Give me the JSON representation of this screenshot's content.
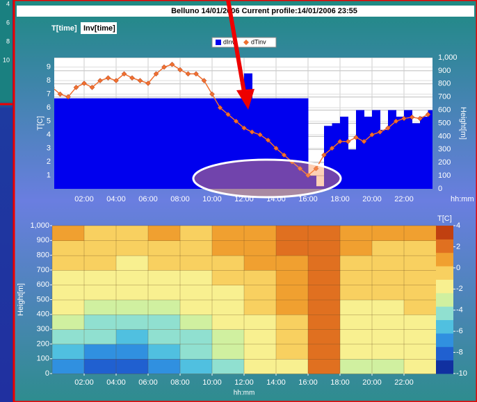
{
  "ui": {
    "title": "Belluno 14/01/2006 Current profile:14/01/2006 23:55",
    "tabs": [
      "T[time]",
      "Inv[time]"
    ],
    "side_labels": [
      "4",
      "6",
      "8",
      "10"
    ]
  },
  "chart_data": [
    {
      "type": "combo",
      "xlim": [
        0,
        24
      ],
      "xticks": [
        {
          "value": 2,
          "label": "02:00"
        },
        {
          "value": 4,
          "label": "04:00"
        },
        {
          "value": 6,
          "label": "06:00"
        },
        {
          "value": 8,
          "label": "08:00"
        },
        {
          "value": 10,
          "label": "10:00"
        },
        {
          "value": 12,
          "label": "12:00"
        },
        {
          "value": 14,
          "label": "14:00"
        },
        {
          "value": 16,
          "label": "16:00"
        },
        {
          "value": 18,
          "label": "18:00"
        },
        {
          "value": 20,
          "label": "20:00"
        },
        {
          "value": 22,
          "label": "22:00"
        }
      ],
      "xlabel": "hh:mm",
      "ylabel": "T[C]",
      "y2label": "Height[m]",
      "ylim": [
        0,
        9.7
      ],
      "yticks": [
        1,
        2,
        3,
        4,
        5,
        6,
        7,
        8,
        9
      ],
      "y2lim": [
        0,
        1000
      ],
      "y2ticks": [
        0,
        100,
        200,
        300,
        400,
        500,
        600,
        700,
        800,
        900,
        {
          "value": 1000,
          "label": "1,000"
        }
      ],
      "grid": true,
      "x": [
        0,
        0.5,
        1,
        1.5,
        2,
        2.5,
        3,
        3.5,
        4,
        4.5,
        5,
        5.5,
        6,
        6.5,
        7,
        7.5,
        8,
        8.5,
        9,
        9.5,
        10,
        10.5,
        11,
        11.5,
        12,
        12.5,
        13,
        13.5,
        14,
        14.5,
        15,
        15.5,
        16,
        16.5,
        17,
        17.5,
        18,
        18.5,
        19,
        19.5,
        20,
        20.5,
        21,
        21.5,
        22,
        22.5,
        23,
        23.5
      ],
      "series": [
        {
          "name": "dInv",
          "type": "bar",
          "axis": "y2",
          "color": "#0000ee",
          "values": [
            690,
            690,
            690,
            690,
            690,
            690,
            690,
            690,
            690,
            690,
            690,
            690,
            690,
            690,
            690,
            690,
            690,
            690,
            690,
            690,
            690,
            690,
            690,
            690,
            880,
            690,
            690,
            690,
            690,
            690,
            690,
            690,
            100,
            20,
            480,
            500,
            550,
            300,
            600,
            550,
            600,
            450,
            600,
            550,
            600,
            500,
            550,
            600
          ]
        },
        {
          "name": "dTinv",
          "type": "line",
          "color": "#f07030",
          "values": [
            7.5,
            7,
            6.8,
            7.5,
            7.8,
            7.5,
            8,
            8.2,
            8,
            8.5,
            8.2,
            8,
            7.8,
            8.5,
            9,
            9.2,
            8.8,
            8.5,
            8.5,
            8,
            7,
            6,
            5.5,
            5,
            4.5,
            4.2,
            4,
            3.6,
            3,
            2.5,
            2,
            1.5,
            1,
            1.5,
            2.5,
            3,
            3.5,
            3.5,
            3.8,
            3.5,
            4,
            4.2,
            4.5,
            5,
            5.2,
            5.3,
            5.2,
            5.5
          ]
        }
      ]
    },
    {
      "type": "heatmap",
      "xlim": [
        0,
        24
      ],
      "xticks": [
        {
          "value": 2,
          "label": "02:00"
        },
        {
          "value": 4,
          "label": "04:00"
        },
        {
          "value": 6,
          "label": "06:00"
        },
        {
          "value": 8,
          "label": "08:00"
        },
        {
          "value": 10,
          "label": "10:00"
        },
        {
          "value": 12,
          "label": "12:00"
        },
        {
          "value": 14,
          "label": "14:00"
        },
        {
          "value": 16,
          "label": "16:00"
        },
        {
          "value": 18,
          "label": "18:00"
        },
        {
          "value": 20,
          "label": "20:00"
        },
        {
          "value": 22,
          "label": "22:00"
        }
      ],
      "xlabel": "hh:mm",
      "ylabel": "Height[m]",
      "ylim": [
        0,
        1000
      ],
      "yticks": [
        0,
        100,
        200,
        300,
        400,
        500,
        600,
        700,
        800,
        900,
        {
          "value": 1000,
          "label": "1,000"
        }
      ],
      "x": [
        1,
        3,
        5,
        7,
        9,
        11,
        13,
        15,
        17,
        19,
        21,
        23
      ],
      "y": [
        50,
        150,
        250,
        350,
        450,
        550,
        650,
        750,
        850,
        950
      ],
      "values": [
        [
          -7,
          -8,
          -8,
          -7,
          -6,
          -4,
          -2,
          -1,
          2,
          -3,
          -3,
          -2
        ],
        [
          -6,
          -7,
          -7,
          -6,
          -5,
          -3,
          -2,
          0,
          2,
          -2,
          -2,
          -2
        ],
        [
          -5,
          -5,
          -6,
          -5,
          -4,
          -3,
          -1,
          0,
          2,
          -2,
          -2,
          -1
        ],
        [
          -3,
          -4,
          -4,
          -4,
          -3,
          -2,
          -1,
          0,
          2,
          -1,
          -1,
          -1
        ],
        [
          -2,
          -3,
          -3,
          -3,
          -2,
          -2,
          0,
          1,
          2,
          -1,
          -1,
          0
        ],
        [
          -1,
          -2,
          -2,
          -2,
          -1,
          -1,
          0,
          1,
          3,
          0,
          0,
          0
        ],
        [
          -1,
          -1,
          -1,
          -1,
          -1,
          0,
          0,
          1,
          3,
          0,
          0,
          0
        ],
        [
          0,
          0,
          -1,
          0,
          0,
          0,
          1,
          1,
          3,
          0,
          0,
          0
        ],
        [
          0,
          0,
          0,
          0,
          0,
          1,
          1,
          2,
          3,
          1,
          0,
          0
        ],
        [
          1,
          0,
          0,
          1,
          0,
          1,
          1,
          2,
          3,
          1,
          1,
          1
        ]
      ],
      "clim": [
        -10,
        4
      ],
      "cticks": [
        4,
        2,
        0,
        -2,
        -4,
        -6,
        -8,
        -10
      ],
      "colorbar_label": "T[C]",
      "colors": [
        "#1030a0",
        "#2060d0",
        "#3090e0",
        "#50c0e0",
        "#90e0d0",
        "#d0f0a0",
        "#f8f090",
        "#f8d060",
        "#f0a030",
        "#e07020",
        "#c04010"
      ]
    }
  ]
}
